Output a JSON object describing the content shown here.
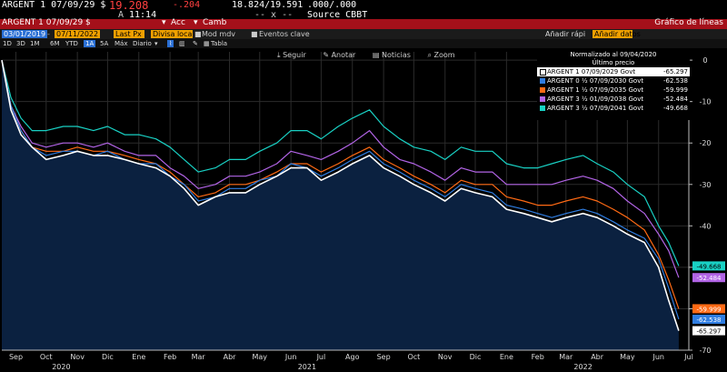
{
  "header": {
    "ticker": "ARGENT 1 07/09/29 $",
    "price": "19.208",
    "change": "-.204",
    "range": "18.824/19.591",
    "yield_range": ".000/.000",
    "at_prefix": "A",
    "time": "11:14",
    "dashes": "-- x --",
    "source": "Source CBBT"
  },
  "redbar": {
    "left_label": "ARGENT 1 07/09/29 $",
    "action1": "Acc",
    "action2": "Camb",
    "title": "Gráfico de líneas"
  },
  "toolbar": {
    "date_from": "03/01/2019",
    "date_to": "07/11/2022",
    "field": "Last Px",
    "currency": "Divisa loca",
    "mod": "Mod mdv",
    "events": "Eventos clave",
    "add_quick": "Añadir rápi",
    "add_data": "Añadir datos",
    "periods": [
      "1D",
      "3D",
      "1M",
      "6M",
      "YTD",
      "1A",
      "5A",
      "Máx"
    ],
    "selected_period": "1A",
    "frequency": "Diario",
    "table": "Tabla"
  },
  "chart_toolbar": {
    "follow": "Seguir",
    "annotate": "Anotar",
    "news": "Noticias",
    "zoom": "Zoom"
  },
  "legend": {
    "title": "Normalizado al 09/04/2020",
    "subtitle": "Último precio"
  },
  "colors": {
    "background": "#000000",
    "area_fill": "#0b2140",
    "grid": "#2b2b2b",
    "red_bar": "#a4101a",
    "field_orange": "#f0a000"
  },
  "chart_data": {
    "type": "line",
    "y_axis_side": "right",
    "ylim": [
      -70,
      2
    ],
    "yticks": [
      0,
      -10,
      -20,
      -30,
      -40,
      -50,
      -60,
      -70
    ],
    "xlim": [
      "2020-09-01",
      "2022-07-15"
    ],
    "month_labels": [
      "Sep",
      "Oct",
      "Nov",
      "Dic",
      "Ene",
      "Feb",
      "Mar",
      "Abr",
      "May",
      "Jun",
      "Jul",
      "Ago",
      "Sep",
      "Oct",
      "Nov",
      "Dic",
      "Ene",
      "Feb",
      "Mar",
      "Abr",
      "May",
      "Jun",
      "Jul"
    ],
    "month_dates": [
      "2020-09-15",
      "2020-10-15",
      "2020-11-15",
      "2020-12-15",
      "2021-01-15",
      "2021-02-15",
      "2021-03-15",
      "2021-04-15",
      "2021-05-15",
      "2021-06-15",
      "2021-07-15",
      "2021-08-15",
      "2021-09-15",
      "2021-10-15",
      "2021-11-15",
      "2021-12-15",
      "2022-01-15",
      "2022-02-15",
      "2022-03-15",
      "2022-04-15",
      "2022-05-15",
      "2022-06-15",
      "2022-07-15"
    ],
    "year_labels": [
      {
        "label": "2020",
        "date": "2020-10-30"
      },
      {
        "label": "2021",
        "date": "2021-07-01"
      },
      {
        "label": "2022",
        "date": "2022-04-01"
      }
    ],
    "dates": [
      "2020-09-01",
      "2020-09-10",
      "2020-09-20",
      "2020-10-01",
      "2020-10-15",
      "2020-11-01",
      "2020-11-15",
      "2020-12-01",
      "2020-12-15",
      "2021-01-01",
      "2021-01-15",
      "2021-02-01",
      "2021-02-15",
      "2021-03-01",
      "2021-03-15",
      "2021-04-01",
      "2021-04-15",
      "2021-05-01",
      "2021-05-15",
      "2021-06-01",
      "2021-06-15",
      "2021-07-01",
      "2021-07-15",
      "2021-08-01",
      "2021-08-15",
      "2021-09-01",
      "2021-09-15",
      "2021-10-01",
      "2021-10-15",
      "2021-11-01",
      "2021-11-15",
      "2021-12-01",
      "2021-12-15",
      "2022-01-01",
      "2022-01-15",
      "2022-02-01",
      "2022-02-15",
      "2022-03-01",
      "2022-03-15",
      "2022-04-01",
      "2022-04-15",
      "2022-05-01",
      "2022-05-15",
      "2022-06-01",
      "2022-06-15",
      "2022-06-25",
      "2022-07-05"
    ],
    "series": [
      {
        "name": "ARGENT 1 07/09/2029 Govt",
        "last": "-65.297",
        "color": "#ffffff",
        "fill": true,
        "values": [
          0,
          -12,
          -18,
          -21,
          -24,
          -23,
          -22,
          -23,
          -23,
          -24,
          -25,
          -26,
          -28,
          -31,
          -35,
          -33,
          -32,
          -32,
          -30,
          -28,
          -26,
          -26,
          -29,
          -27,
          -25,
          -23,
          -26,
          -28,
          -30,
          -32,
          -34,
          -31,
          -32,
          -33,
          -36,
          -37,
          -38,
          -39,
          -38,
          -37,
          -38,
          -40,
          -42,
          -44,
          -50,
          -58,
          -65.297
        ]
      },
      {
        "name": "ARGENT 0 ½ 07/09/2030 Govt",
        "last": "-62.538",
        "color": "#2f7de1",
        "fill": false,
        "values": [
          0,
          -11,
          -17,
          -21,
          -23,
          -22,
          -22,
          -23,
          -22,
          -24,
          -25,
          -25,
          -28,
          -30,
          -34,
          -33,
          -31,
          -31,
          -29,
          -28,
          -25,
          -26,
          -28,
          -26,
          -24,
          -22,
          -25,
          -27,
          -29,
          -31,
          -33,
          -30,
          -31,
          -32,
          -35,
          -36,
          -37,
          -38,
          -37,
          -36,
          -37,
          -39,
          -41,
          -43,
          -48,
          -55,
          -62.538
        ]
      },
      {
        "name": "ARGENT 1 ½ 07/09/2035 Govt",
        "last": "-59.999",
        "color": "#ff6a14",
        "fill": false,
        "values": [
          0,
          -11,
          -17,
          -21,
          -22,
          -22,
          -21,
          -22,
          -22,
          -23,
          -24,
          -25,
          -27,
          -30,
          -33,
          -32,
          -30,
          -30,
          -29,
          -27,
          -25,
          -25,
          -27,
          -25,
          -23,
          -21,
          -24,
          -26,
          -28,
          -30,
          -32,
          -29,
          -30,
          -30,
          -33,
          -34,
          -35,
          -35,
          -34,
          -33,
          -34,
          -36,
          -38,
          -41,
          -47,
          -53,
          -59.999
        ]
      },
      {
        "name": "ARGENT 3 ½ 01/09/2038 Govt",
        "last": "-52.484",
        "color": "#b264e6",
        "fill": false,
        "values": [
          0,
          -11,
          -16,
          -20,
          -21,
          -20,
          -20,
          -21,
          -20,
          -22,
          -23,
          -23,
          -26,
          -28,
          -31,
          -30,
          -28,
          -28,
          -27,
          -25,
          -22,
          -23,
          -24,
          -22,
          -20,
          -17,
          -21,
          -24,
          -25,
          -27,
          -29,
          -26,
          -27,
          -27,
          -30,
          -30,
          -30,
          -30,
          -29,
          -28,
          -29,
          -31,
          -34,
          -37,
          -42,
          -46,
          -52.484
        ]
      },
      {
        "name": "ARGENT 3 ½ 07/09/2041 Govt",
        "last": "-49.668",
        "color": "#19d1c4",
        "fill": false,
        "values": [
          0,
          -9,
          -14,
          -17,
          -17,
          -16,
          -16,
          -17,
          -16,
          -18,
          -18,
          -19,
          -21,
          -24,
          -27,
          -26,
          -24,
          -24,
          -22,
          -20,
          -17,
          -17,
          -19,
          -16,
          -14,
          -12,
          -16,
          -19,
          -21,
          -22,
          -24,
          -21,
          -22,
          -22,
          -25,
          -26,
          -26,
          -25,
          -24,
          -23,
          -25,
          -27,
          -30,
          -33,
          -40,
          -44,
          -49.668
        ]
      }
    ]
  }
}
